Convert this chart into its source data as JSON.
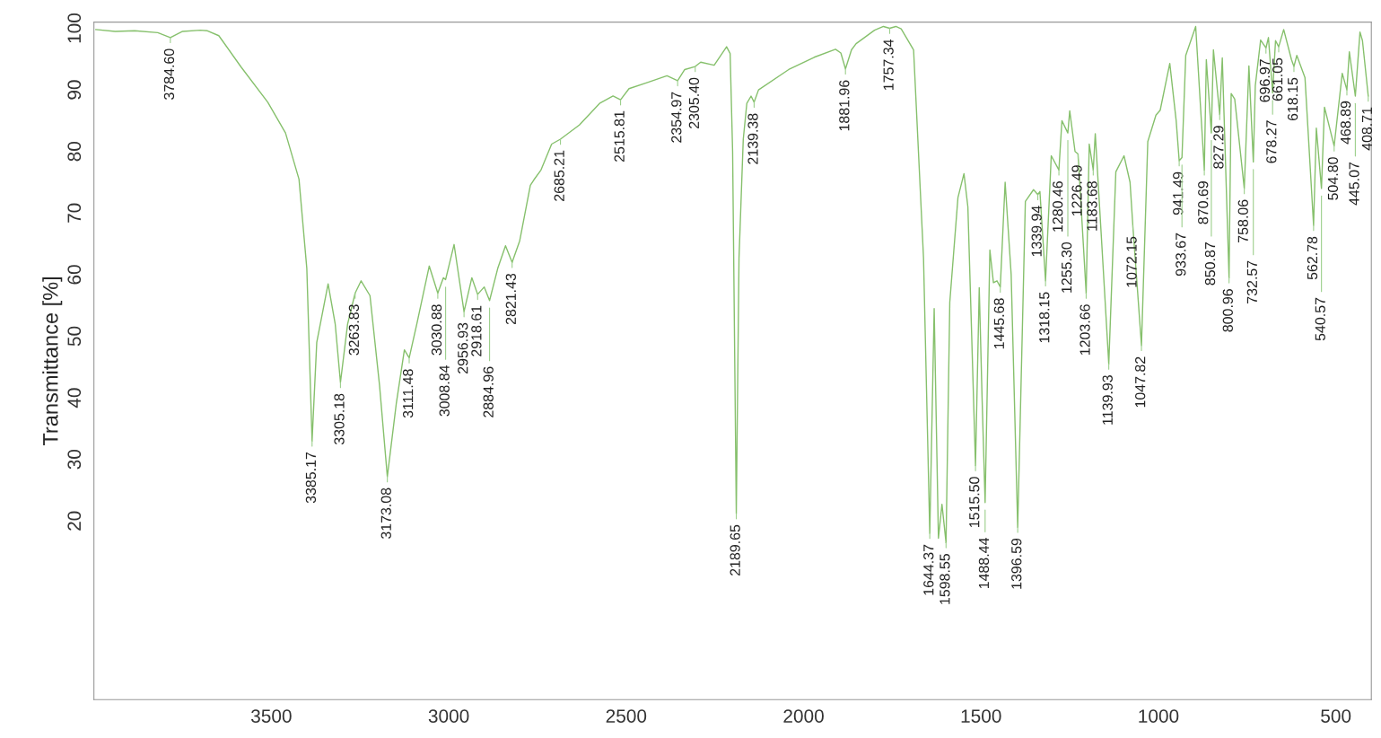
{
  "chart_data": {
    "type": "line",
    "ylabel": "Transmittance [%]",
    "xlim": [
      4000,
      400
    ],
    "ylim": [
      -9,
      101
    ],
    "xticks": [
      3500,
      3000,
      2500,
      2000,
      1500,
      1000,
      500
    ],
    "yticks": [
      20,
      30,
      40,
      50,
      60,
      70,
      80,
      90,
      100
    ],
    "grid": false,
    "legend": false,
    "marker": "none",
    "line_style": "solid",
    "series": [
      {
        "color": "#86c06c",
        "x": [
          3995,
          3940,
          3885,
          3820,
          3784.6,
          3750,
          3700,
          3680,
          3648,
          3585,
          3510,
          3460,
          3422,
          3400,
          3385.17,
          3372,
          3340,
          3320,
          3305.18,
          3285,
          3263.83,
          3247,
          3222,
          3195,
          3173.08,
          3148,
          3125,
          3111.48,
          3090,
          3055,
          3030.88,
          3015,
          3008.84,
          2985,
          2956.93,
          2935,
          2918.61,
          2900,
          2884.96,
          2862,
          2840,
          2821.43,
          2800,
          2770,
          2760,
          2740,
          2710,
          2685.21,
          2632,
          2575,
          2537,
          2515.81,
          2492,
          2440,
          2385,
          2354.97,
          2335,
          2305.4,
          2290,
          2252,
          2217,
          2207,
          2200,
          2189.65,
          2182,
          2170,
          2160,
          2148,
          2139.38,
          2127,
          2042,
          1970,
          1910,
          1895,
          1881.96,
          1865,
          1852,
          1800,
          1775,
          1757.34,
          1740,
          1725,
          1690,
          1662,
          1644.37,
          1632,
          1620,
          1610,
          1598.55,
          1588,
          1565,
          1548,
          1537,
          1515.5,
          1505,
          1497,
          1488.44,
          1475,
          1465,
          1455,
          1445.68,
          1432,
          1415,
          1396.59,
          1375,
          1352,
          1339.94,
          1334,
          1318.15,
          1302,
          1280.46,
          1272,
          1255.3,
          1250,
          1235,
          1226.49,
          1203.66,
          1195,
          1183.68,
          1178,
          1157,
          1139.93,
          1120,
          1097,
          1080,
          1072.15,
          1047.82,
          1030,
          1007,
          995,
          968,
          950,
          941.49,
          933.67,
          923,
          895,
          870.69,
          865,
          850.87,
          845,
          827.29,
          820,
          800.96,
          795,
          785,
          758.06,
          745,
          732.57,
          727,
          712,
          696.97,
          690,
          678.27,
          670,
          661.05,
          647,
          625,
          618.15,
          610,
          587,
          562.78,
          555,
          540.57,
          532,
          504.8,
          482,
          468.89,
          462,
          445.07,
          432,
          425,
          408.71
        ],
        "values": [
          99.8,
          99.5,
          99.6,
          99.3,
          98.5,
          99.5,
          99.7,
          99.6,
          98.8,
          93.7,
          88,
          83,
          75.5,
          61,
          33,
          49,
          58.5,
          52,
          42.5,
          52,
          57,
          59,
          56.6,
          42,
          27.2,
          39,
          47.8,
          46.5,
          52,
          61.4,
          57,
          59.5,
          59.2,
          64.9,
          54,
          59.5,
          56.8,
          58,
          55.8,
          61,
          64.7,
          62,
          65.5,
          74.5,
          75.4,
          77,
          81.2,
          82,
          84.3,
          87.8,
          89,
          88.4,
          90.2,
          91.2,
          92.3,
          91.5,
          93.3,
          93.8,
          94.5,
          94,
          97,
          95.9,
          80,
          21.2,
          62.7,
          82,
          87.8,
          89,
          88,
          90,
          93.3,
          95.3,
          96.6,
          96,
          93.4,
          96.5,
          97.5,
          99.7,
          100.3,
          100,
          100.3,
          99.9,
          96.5,
          62.7,
          18,
          54.5,
          17.2,
          22.7,
          16.5,
          55.5,
          72.5,
          76.4,
          71,
          29,
          57.9,
          40,
          23,
          64,
          58.7,
          59,
          58,
          75,
          60,
          19,
          71.9,
          73.8,
          73,
          73.5,
          59,
          79.3,
          77,
          85,
          83,
          86.6,
          80,
          79.6,
          57,
          81.2,
          77,
          82.9,
          62.4,
          45.5,
          76.7,
          79.3,
          75,
          68,
          48.5,
          81.6,
          85.9,
          86.7,
          94.3,
          85,
          78.5,
          79,
          95.6,
          100.3,
          77,
          94.9,
          83,
          96.5,
          86,
          95.2,
          59.5,
          89.4,
          88.5,
          74,
          93.9,
          78.3,
          90.7,
          98.1,
          96.8,
          98.5,
          89.5,
          98,
          97,
          99.8,
          94.9,
          93.8,
          95.6,
          92,
          68,
          83.8,
          74,
          87.2,
          80.9,
          92.7,
          90,
          96.2,
          89,
          99.4,
          98,
          89
        ]
      }
    ],
    "annotations": [
      {
        "text": "3784.60",
        "x": 3784.6,
        "y": 98.5
      },
      {
        "text": "3385.17",
        "x": 3385.17,
        "y": 33
      },
      {
        "text": "3305.18",
        "x": 3305.18,
        "y": 42.5
      },
      {
        "text": "3263.83",
        "x": 3263.83,
        "y": 57
      },
      {
        "text": "3173.08",
        "x": 3173.08,
        "y": 27.2
      },
      {
        "text": "3111.48",
        "x": 3111.48,
        "y": 46.5
      },
      {
        "text": "3030.88",
        "x": 3030.88,
        "y": 57
      },
      {
        "text": "3008.84",
        "x": 3008.84,
        "y": 59.2
      },
      {
        "text": "2956.93",
        "x": 2956.93,
        "y": 54
      },
      {
        "text": "2918.61",
        "x": 2918.61,
        "y": 56.8
      },
      {
        "text": "2884.96",
        "x": 2884.96,
        "y": 55.8
      },
      {
        "text": "2821.43",
        "x": 2821.43,
        "y": 62
      },
      {
        "text": "2685.21",
        "x": 2685.21,
        "y": 82
      },
      {
        "text": "2515.81",
        "x": 2515.81,
        "y": 88.4
      },
      {
        "text": "2354.97",
        "x": 2354.97,
        "y": 91.5
      },
      {
        "text": "2305.40",
        "x": 2305.4,
        "y": 93.8
      },
      {
        "text": "2189.65",
        "x": 2189.65,
        "y": 21.2
      },
      {
        "text": "2139.38",
        "x": 2139.38,
        "y": 88
      },
      {
        "text": "1881.96",
        "x": 1881.96,
        "y": 93.4
      },
      {
        "text": "1757.34",
        "x": 1757.34,
        "y": 100
      },
      {
        "text": "1644.37",
        "x": 1644.37,
        "y": 18
      },
      {
        "text": "1598.55",
        "x": 1598.55,
        "y": 16.5
      },
      {
        "text": "1515.50",
        "x": 1515.5,
        "y": 29
      },
      {
        "text": "1488.44",
        "x": 1488.44,
        "y": 23
      },
      {
        "text": "1445.68",
        "x": 1445.68,
        "y": 58
      },
      {
        "text": "1396.59",
        "x": 1396.59,
        "y": 19
      },
      {
        "text": "1339.94",
        "x": 1339.94,
        "y": 73
      },
      {
        "text": "1318.15",
        "x": 1318.15,
        "y": 59
      },
      {
        "text": "1280.46",
        "x": 1280.46,
        "y": 77
      },
      {
        "text": "1255.30",
        "x": 1255.3,
        "y": 83
      },
      {
        "text": "1226.49",
        "x": 1226.49,
        "y": 79.6
      },
      {
        "text": "1203.66",
        "x": 1203.66,
        "y": 57
      },
      {
        "text": "1183.68",
        "x": 1183.68,
        "y": 77
      },
      {
        "text": "1139.93",
        "x": 1139.93,
        "y": 45.5
      },
      {
        "text": "1072.15",
        "x": 1072.15,
        "y": 68
      },
      {
        "text": "1047.82",
        "x": 1047.82,
        "y": 48.5
      },
      {
        "text": "941.49",
        "x": 941.49,
        "y": 78.5
      },
      {
        "text": "933.67",
        "x": 933.67,
        "y": 79
      },
      {
        "text": "870.69",
        "x": 870.69,
        "y": 77
      },
      {
        "text": "850.87",
        "x": 850.87,
        "y": 83
      },
      {
        "text": "827.29",
        "x": 827.29,
        "y": 86
      },
      {
        "text": "800.96",
        "x": 800.96,
        "y": 59.5
      },
      {
        "text": "758.06",
        "x": 758.06,
        "y": 74
      },
      {
        "text": "732.57",
        "x": 732.57,
        "y": 78.3
      },
      {
        "text": "696.97",
        "x": 696.97,
        "y": 96.8
      },
      {
        "text": "678.27",
        "x": 678.27,
        "y": 89.5
      },
      {
        "text": "661.05",
        "x": 661.05,
        "y": 97
      },
      {
        "text": "618.15",
        "x": 618.15,
        "y": 93.8
      },
      {
        "text": "562.78",
        "x": 562.78,
        "y": 68
      },
      {
        "text": "540.57",
        "x": 540.57,
        "y": 74
      },
      {
        "text": "504.80",
        "x": 504.8,
        "y": 80.9
      },
      {
        "text": "468.89",
        "x": 468.89,
        "y": 90
      },
      {
        "text": "445.07",
        "x": 445.07,
        "y": 89
      },
      {
        "text": "408.71",
        "x": 408.71,
        "y": 89
      }
    ]
  }
}
